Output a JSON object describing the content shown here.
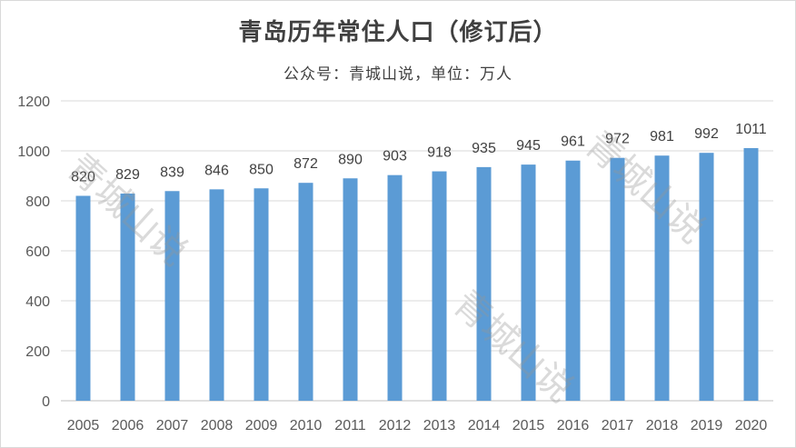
{
  "chart_data": {
    "type": "bar",
    "title": "青岛历年常住人口（修订后）",
    "subtitle": "公众号：青城山说，单位：万人",
    "categories": [
      "2005",
      "2006",
      "2007",
      "2008",
      "2009",
      "2010",
      "2011",
      "2012",
      "2013",
      "2014",
      "2015",
      "2016",
      "2017",
      "2018",
      "2019",
      "2020"
    ],
    "values": [
      820,
      829,
      839,
      846,
      850,
      872,
      890,
      903,
      918,
      935,
      945,
      961,
      972,
      981,
      992,
      1011
    ],
    "ylim": [
      0,
      1200
    ],
    "yticks": [
      0,
      200,
      400,
      600,
      800,
      1000,
      1200
    ],
    "grid": true,
    "bar_color": "#5b9bd5",
    "watermark": "青城山说"
  }
}
